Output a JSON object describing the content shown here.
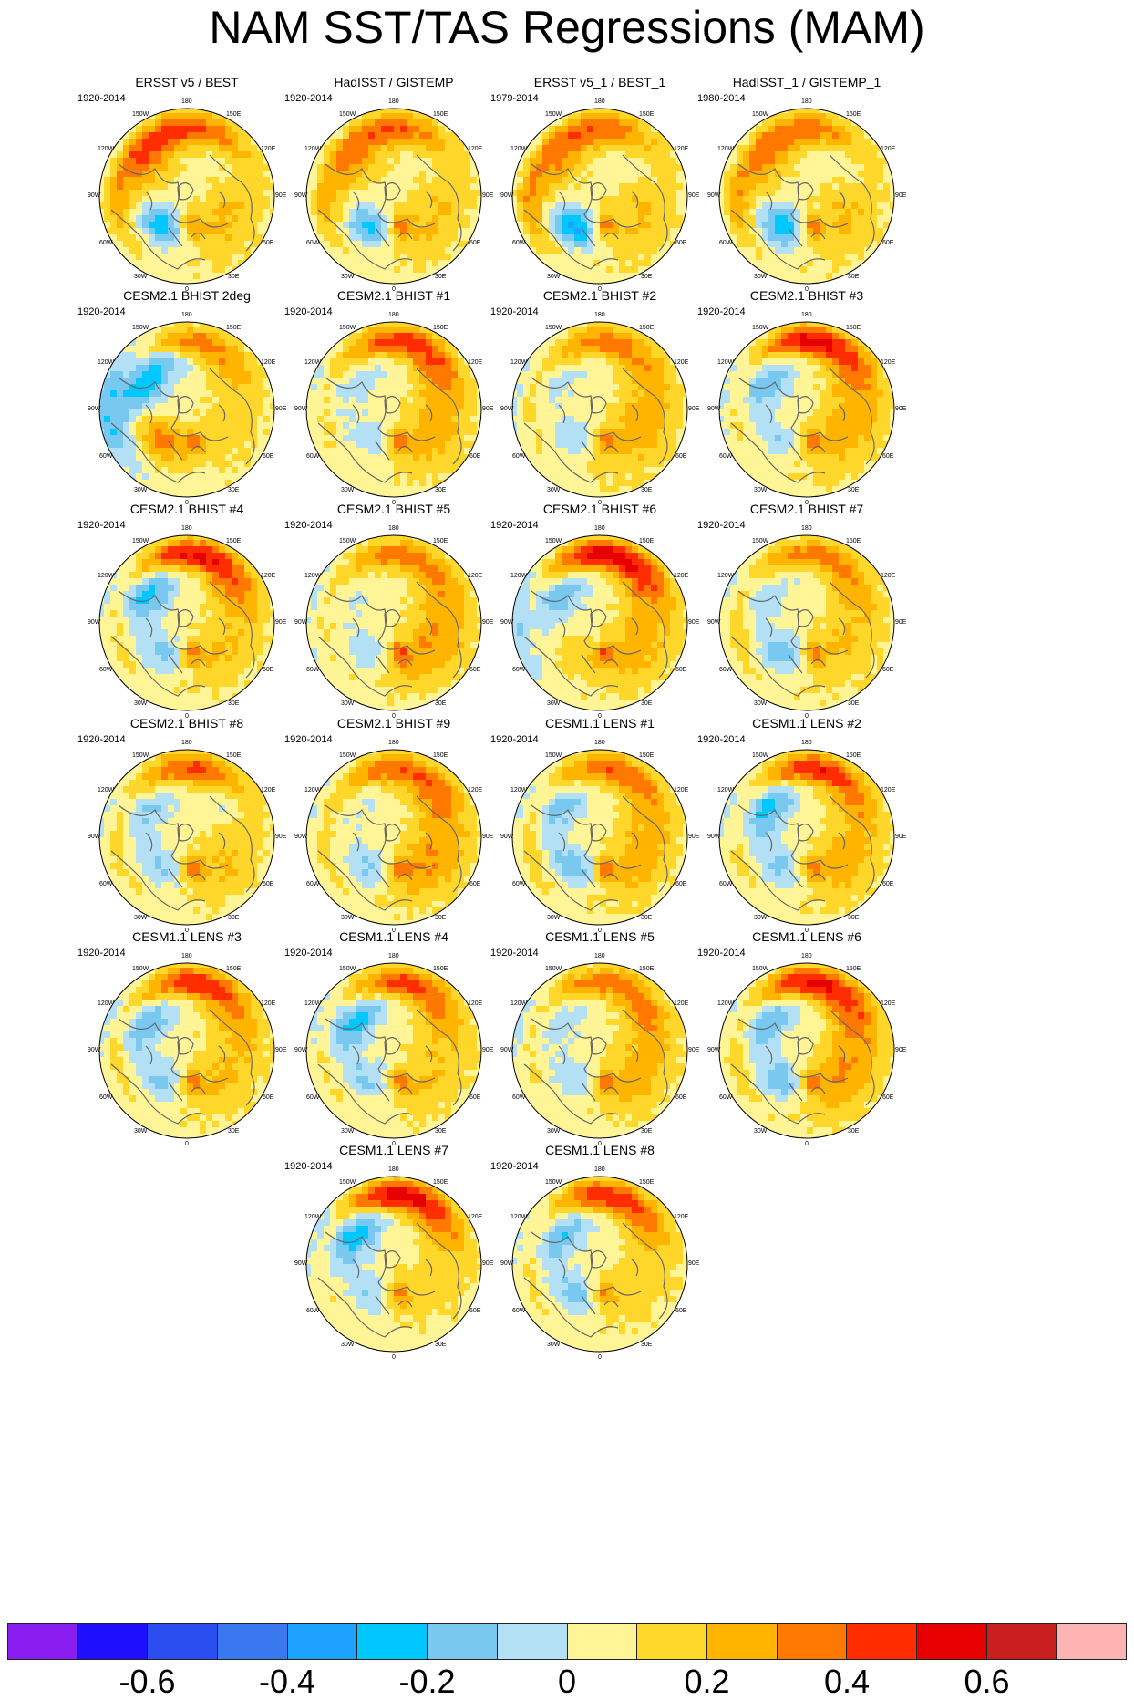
{
  "figure_title": "NAM SST/TAS Regressions (MAM)",
  "longitude_labels": [
    "180",
    "150E",
    "120E",
    "90E",
    "60E",
    "30E",
    "0",
    "30W",
    "60W",
    "90W",
    "120W",
    "150W"
  ],
  "panels": [
    {
      "title": "ERSST v5 / BEST",
      "period": "1920-2014",
      "amp": 0.35,
      "pac": 0.25,
      "atl": -0.35,
      "eur": 0.05,
      "wpac": -0.05
    },
    {
      "title": "HadISST / GISTEMP",
      "period": "1920-2014",
      "amp": 0.3,
      "pac": 0.2,
      "atl": -0.3,
      "eur": 0.05,
      "wpac": -0.05
    },
    {
      "title": "ERSST v5_1 / BEST_1",
      "period": "1979-2014",
      "amp": 0.3,
      "pac": 0.2,
      "atl": -0.4,
      "eur": 0.05,
      "wpac": -0.1
    },
    {
      "title": "HadISST_1 / GISTEMP_1",
      "period": "1980-2014",
      "amp": 0.28,
      "pac": 0.2,
      "atl": -0.35,
      "eur": 0.05,
      "wpac": -0.1
    },
    {
      "title": "CESM2.1 BHIST 2deg",
      "period": "1920-2014",
      "amp": 0.3,
      "pac": -0.4,
      "atl": 0.3,
      "eur": 0.0,
      "wpac": 0.1
    },
    {
      "title": "CESM2.1 BHIST #1",
      "period": "1920-2014",
      "amp": 0.4,
      "pac": -0.15,
      "atl": -0.15,
      "eur": 0.1,
      "wpac": 0.15
    },
    {
      "title": "CESM2.1 BHIST #2",
      "period": "1920-2014",
      "amp": 0.3,
      "pac": -0.1,
      "atl": -0.15,
      "eur": 0.1,
      "wpac": 0.1
    },
    {
      "title": "CESM2.1 BHIST #3",
      "period": "1920-2014",
      "amp": 0.5,
      "pac": -0.3,
      "atl": -0.15,
      "eur": 0.1,
      "wpac": 0.15
    },
    {
      "title": "CESM2.1 BHIST #4",
      "period": "1920-2014",
      "amp": 0.5,
      "pac": -0.35,
      "atl": -0.2,
      "eur": 0.05,
      "wpac": 0.15
    },
    {
      "title": "CESM2.1 BHIST #5",
      "period": "1920-2014",
      "amp": 0.3,
      "pac": -0.1,
      "atl": -0.15,
      "eur": 0.15,
      "wpac": 0.1
    },
    {
      "title": "CESM2.1 BHIST #6",
      "period": "1920-2014",
      "amp": 0.55,
      "pac": -0.3,
      "atl": 0.1,
      "eur": 0.1,
      "wpac": 0.15
    },
    {
      "title": "CESM2.1 BHIST #7",
      "period": "1920-2014",
      "amp": 0.3,
      "pac": -0.15,
      "atl": -0.25,
      "eur": 0.05,
      "wpac": 0.1
    },
    {
      "title": "CESM2.1 BHIST #8",
      "period": "1920-2014",
      "amp": 0.4,
      "pac": -0.2,
      "atl": -0.2,
      "eur": 0.05,
      "wpac": -0.15
    },
    {
      "title": "CESM2.1 BHIST #9",
      "period": "1920-2014",
      "amp": 0.35,
      "pac": -0.1,
      "atl": -0.2,
      "eur": 0.15,
      "wpac": 0.15
    },
    {
      "title": "CESM1.1 LENS #1",
      "period": "1920-2014",
      "amp": 0.35,
      "pac": -0.25,
      "atl": -0.25,
      "eur": 0.1,
      "wpac": 0.1
    },
    {
      "title": "CESM1.1 LENS #2",
      "period": "1920-2014",
      "amp": 0.45,
      "pac": -0.35,
      "atl": -0.2,
      "eur": 0.1,
      "wpac": 0.1
    },
    {
      "title": "CESM1.1 LENS #3",
      "period": "1920-2014",
      "amp": 0.45,
      "pac": -0.3,
      "atl": -0.2,
      "eur": 0.05,
      "wpac": 0.1
    },
    {
      "title": "CESM1.1 LENS #4",
      "period": "1920-2014",
      "amp": 0.4,
      "pac": -0.35,
      "atl": -0.2,
      "eur": 0.05,
      "wpac": 0.1
    },
    {
      "title": "CESM1.1 LENS #5",
      "period": "1920-2014",
      "amp": 0.3,
      "pac": -0.15,
      "atl": -0.15,
      "eur": 0.1,
      "wpac": 0.15
    },
    {
      "title": "CESM1.1 LENS #6",
      "period": "1920-2014",
      "amp": 0.5,
      "pac": -0.3,
      "atl": -0.25,
      "eur": 0.15,
      "wpac": 0.15
    },
    {
      "title": "CESM1.1 LENS #7",
      "period": "1920-2014",
      "amp": 0.55,
      "pac": -0.4,
      "atl": -0.15,
      "eur": 0.0,
      "wpac": 0.1
    },
    {
      "title": "CESM1.1 LENS #8",
      "period": "1920-2014",
      "amp": 0.45,
      "pac": -0.3,
      "atl": -0.2,
      "eur": 0.0,
      "wpac": 0.1
    }
  ],
  "colorbar": {
    "levels": [
      -0.7,
      -0.6,
      -0.5,
      -0.4,
      -0.3,
      -0.2,
      -0.1,
      0,
      0.1,
      0.2,
      0.3,
      0.4,
      0.5,
      0.6,
      0.7
    ],
    "colors": [
      "#8a1ef0",
      "#1e10ff",
      "#2a4ef0",
      "#3a78f0",
      "#1ea2ff",
      "#00c8ff",
      "#78c8f0",
      "#b4e0f5",
      "#fff596",
      "#ffd72a",
      "#ffb400",
      "#ff7800",
      "#ff2d00",
      "#e60000",
      "#c81e1e",
      "#ffb4b4"
    ],
    "tick_labels": [
      "-0.6",
      "-0.4",
      "-0.2",
      "0",
      "0.2",
      "0.4",
      "0.6"
    ],
    "tick_values": [
      -0.6,
      -0.4,
      -0.2,
      0,
      0.2,
      0.4,
      0.6
    ]
  }
}
